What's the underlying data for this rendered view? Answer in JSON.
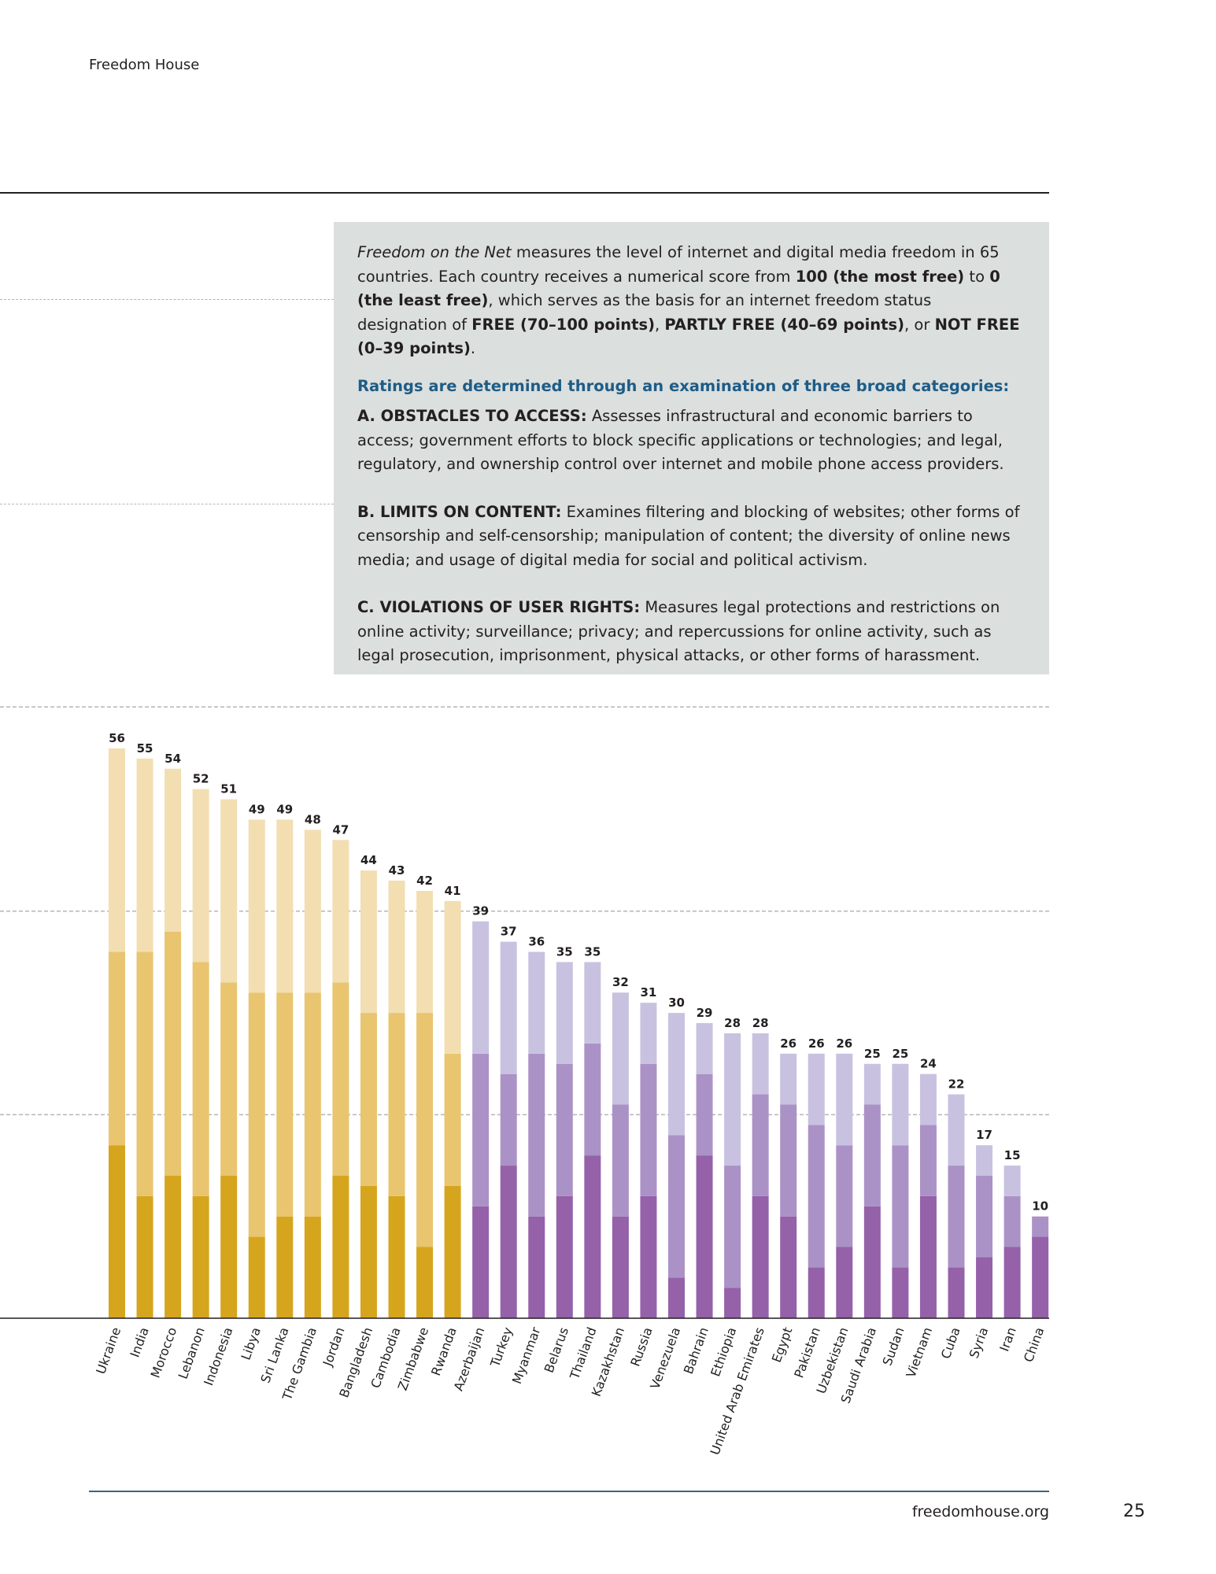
{
  "header": {
    "org": "Freedom House"
  },
  "infobox": {
    "lead": {
      "title_italic": "Freedom on the Net",
      "t1": " measures the level of internet and digital media freedom in 65 countries. Each country receives a numerical score from ",
      "b1": "100 (the most free)",
      "t2": " to ",
      "b2": "0 (the least free)",
      "t3": ", which serves as the basis for an internet freedom status designation of ",
      "b3": "FREE (70–100 points)",
      "t4": ", ",
      "b4": "PARTLY FREE (40–69 points)",
      "t5": ", or ",
      "b5": "NOT FREE (0–39 points)",
      "t6": "."
    },
    "subhead": "Ratings are determined through an examination of three broad categories:",
    "categories": [
      {
        "label": "A. OBSTACLES TO ACCESS:",
        "text": " Assesses infrastructural and economic barriers to access; government efforts to block specific applications or technologies; and legal, regulatory, and ownership control over internet and mobile phone access providers."
      },
      {
        "label": "B. LIMITS ON CONTENT:",
        "text": " Examines filtering and blocking of websites; other forms of censorship and self-censorship; manipulation of content; the diversity of online news media; and usage of digital media for social and political activism."
      },
      {
        "label": "C. VIOLATIONS OF USER RIGHTS:",
        "text": " Measures legal protections and restrictions on online activity; surveillance; privacy; and repercussions for online activity, such as legal prosecution, imprisonment, physical attacks, or other forms of harassment."
      }
    ]
  },
  "chart_data": {
    "type": "bar",
    "stacked": true,
    "ylim": [
      0,
      60
    ],
    "grid": true,
    "categories": [
      "Ukraine",
      "India",
      "Morocco",
      "Lebanon",
      "Indonesia",
      "Libya",
      "Sri Lanka",
      "The Gambia",
      "Jordan",
      "Bangladesh",
      "Cambodia",
      "Zimbabwe",
      "Rwanda",
      "Azerbaijan",
      "Turkey",
      "Myanmar",
      "Belarus",
      "Thailand",
      "Kazakhstan",
      "Russia",
      "Venezuela",
      "Bahrain",
      "Ethiopia",
      "United Arab Emirates",
      "Egypt",
      "Pakistan",
      "Uzbekistan",
      "Saudi Arabia",
      "Sudan",
      "Vietnam",
      "Cuba",
      "Syria",
      "Iran",
      "China"
    ],
    "totals": [
      56,
      55,
      54,
      52,
      51,
      49,
      49,
      48,
      47,
      44,
      43,
      42,
      41,
      39,
      37,
      36,
      35,
      35,
      32,
      31,
      30,
      29,
      28,
      28,
      26,
      26,
      26,
      25,
      25,
      24,
      22,
      17,
      15,
      10
    ],
    "series": [
      {
        "values": [
          17,
          12,
          14,
          12,
          14,
          8,
          10,
          10,
          14,
          13,
          12,
          7,
          13,
          11,
          15,
          10,
          12,
          16,
          10,
          12,
          4,
          16,
          3,
          12,
          10,
          5,
          7,
          11,
          5,
          12,
          5,
          6,
          7,
          8
        ]
      },
      {
        "values": [
          19,
          24,
          24,
          23,
          19,
          24,
          22,
          22,
          19,
          17,
          18,
          23,
          13,
          15,
          9,
          16,
          13,
          11,
          11,
          13,
          14,
          8,
          12,
          10,
          11,
          14,
          10,
          10,
          12,
          7,
          10,
          8,
          5,
          2
        ]
      },
      {
        "values": [
          20,
          19,
          16,
          17,
          18,
          17,
          17,
          16,
          14,
          14,
          13,
          12,
          15,
          13,
          13,
          10,
          10,
          8,
          11,
          6,
          12,
          5,
          13,
          6,
          5,
          7,
          9,
          4,
          8,
          5,
          7,
          3,
          3,
          0
        ]
      }
    ],
    "colors": {
      "partly_free": [
        "#d6a51e",
        "#e8c56e",
        "#f3deb2"
      ],
      "not_free": [
        "#9561a9",
        "#ab92c6",
        "#c8c2e0"
      ]
    },
    "not_free_from_index": 13
  },
  "footer": {
    "url": "freedomhouse.org",
    "page": "25"
  }
}
